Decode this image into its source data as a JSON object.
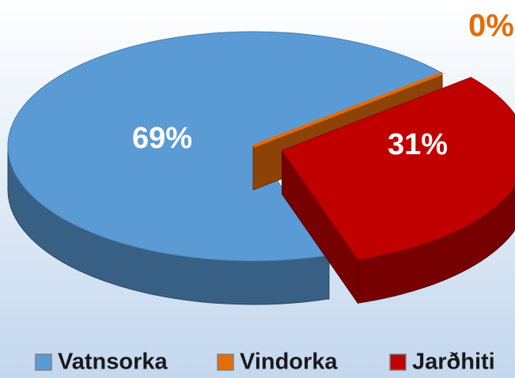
{
  "chart_data": {
    "type": "pie3d",
    "categories": [
      "Vatnsorka",
      "Vindorka",
      "Jarðhiti"
    ],
    "values": [
      69,
      0,
      31
    ],
    "value_labels": [
      "69%",
      "0%",
      "31%"
    ],
    "colors": [
      "#5b9bd5",
      "#e46c0a",
      "#c00000"
    ],
    "legend": "bottom"
  }
}
